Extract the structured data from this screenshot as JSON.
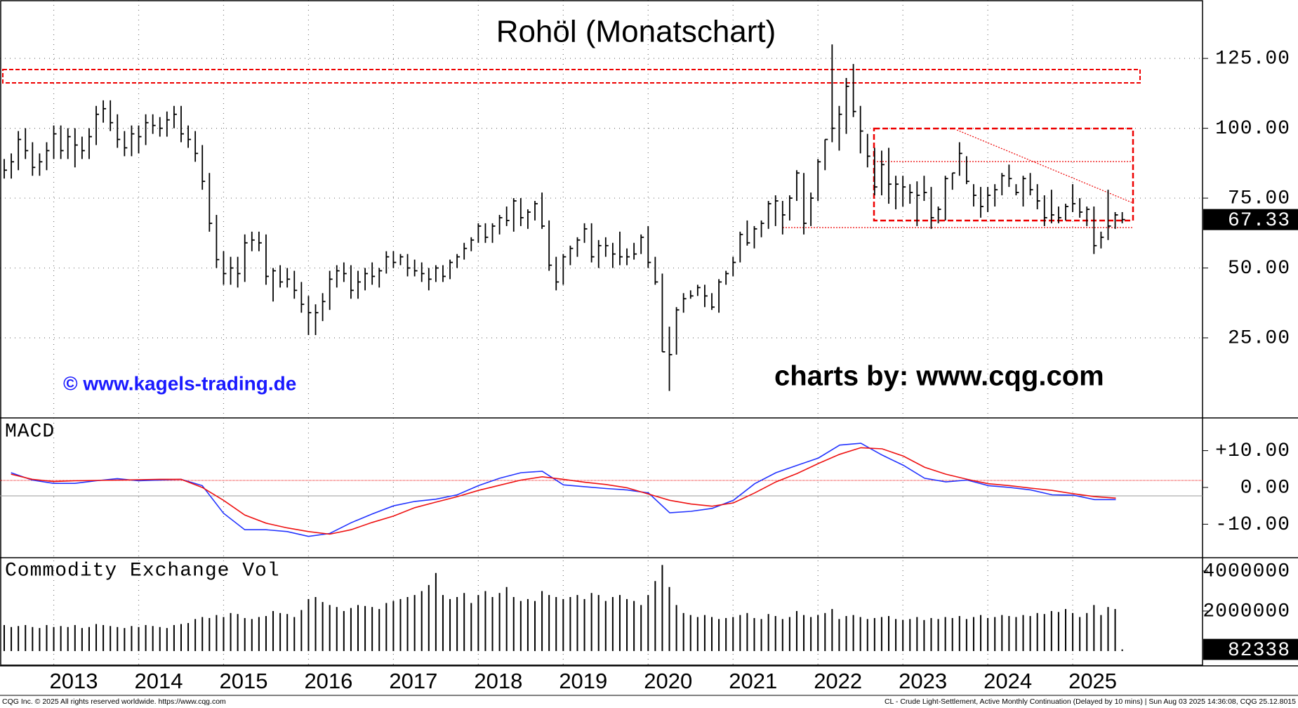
{
  "chart_data": [
    {
      "type": "ohlc",
      "title": "Rohöl (Monatschart)",
      "watermark": "© www.kagels-trading.de",
      "credit": "charts by: www.cqg.com",
      "color": "#000000",
      "categories": [
        null,
        null,
        null,
        null,
        null,
        null,
        null,
        "2013",
        null,
        null,
        null,
        null,
        null,
        null,
        null,
        null,
        null,
        null,
        null,
        "2014",
        null,
        null,
        null,
        null,
        null,
        null,
        null,
        null,
        null,
        null,
        null,
        "2015",
        null,
        null,
        null,
        null,
        null,
        null,
        null,
        null,
        null,
        null,
        null,
        "2016",
        null,
        null,
        null,
        null,
        null,
        null,
        null,
        null,
        null,
        null,
        null,
        "2017",
        null,
        null,
        null,
        null,
        null,
        null,
        null,
        null,
        null,
        null,
        null,
        "2018",
        null,
        null,
        null,
        null,
        null,
        null,
        null,
        null,
        null,
        null,
        null,
        "2019",
        null,
        null,
        null,
        null,
        null,
        null,
        null,
        null,
        null,
        null,
        null,
        "2020",
        null,
        null,
        null,
        null,
        null,
        null,
        null,
        null,
        null,
        null,
        null,
        "2021",
        null,
        null,
        null,
        null,
        null,
        null,
        null,
        null,
        null,
        null,
        null,
        "2022",
        null,
        null,
        null,
        null,
        null,
        null,
        null,
        null,
        null,
        null,
        null,
        "2023",
        null,
        null,
        null,
        null,
        null,
        null,
        null,
        null,
        null,
        null,
        null,
        "2024",
        null,
        null,
        null,
        null,
        null,
        null,
        null,
        null,
        null,
        null,
        null,
        "2025",
        null,
        null,
        null,
        null,
        null,
        null,
        null
      ],
      "high": [
        89,
        91,
        99,
        100,
        95,
        91,
        95,
        101,
        101,
        100,
        100,
        97,
        100,
        108,
        110,
        110,
        105,
        99,
        101,
        101,
        105,
        105,
        104,
        106,
        108,
        108,
        101,
        99,
        94,
        84,
        69,
        56,
        54,
        54,
        62,
        63,
        63,
        62,
        50,
        51,
        50,
        49,
        45,
        40,
        37,
        41,
        49,
        51,
        52,
        51,
        49,
        50,
        52,
        50,
        56,
        56,
        55,
        55,
        53,
        52,
        50,
        51,
        51,
        53,
        55,
        59,
        61,
        66,
        66,
        66,
        69,
        72,
        75,
        75,
        71,
        74,
        77,
        67,
        54,
        55,
        58,
        61,
        66,
        66,
        60,
        61,
        59,
        63,
        57,
        59,
        62,
        65,
        54,
        48,
        29,
        36,
        41,
        42,
        44,
        44,
        41,
        46,
        49,
        54,
        63,
        67,
        65,
        67,
        74,
        76,
        74,
        76,
        85,
        84,
        77,
        89,
        96,
        130,
        108,
        118,
        123,
        108,
        98,
        93,
        92,
        93,
        83,
        83,
        80,
        81,
        83,
        79,
        72,
        83,
        84,
        95,
        90,
        80,
        79,
        79,
        80,
        84,
        87,
        80,
        83,
        84,
        80,
        76,
        78,
        72,
        73,
        80,
        75,
        72,
        72,
        63,
        78,
        70,
        70
      ],
      "low": [
        82,
        82,
        85,
        89,
        83,
        83,
        85,
        89,
        89,
        89,
        86,
        89,
        89,
        94,
        102,
        99,
        93,
        90,
        90,
        91,
        94,
        98,
        97,
        97,
        100,
        95,
        93,
        88,
        78,
        63,
        50,
        44,
        44,
        43,
        45,
        56,
        56,
        44,
        38,
        43,
        43,
        39,
        34,
        26,
        26,
        31,
        35,
        43,
        45,
        39,
        39,
        42,
        44,
        43,
        48,
        50,
        51,
        47,
        47,
        45,
        42,
        45,
        45,
        46,
        50,
        53,
        56,
        59,
        59,
        59,
        62,
        65,
        63,
        65,
        64,
        67,
        64,
        49,
        42,
        44,
        51,
        54,
        59,
        52,
        50,
        54,
        50,
        51,
        51,
        53,
        55,
        50,
        44,
        20,
        6,
        19,
        34,
        39,
        40,
        36,
        35,
        34,
        44,
        47,
        52,
        58,
        57,
        61,
        64,
        65,
        62,
        67,
        74,
        62,
        65,
        74,
        85,
        95,
        92,
        98,
        104,
        91,
        86,
        76,
        76,
        73,
        71,
        72,
        73,
        65,
        74,
        64,
        66,
        67,
        78,
        83,
        80,
        72,
        68,
        70,
        72,
        76,
        79,
        76,
        72,
        76,
        71,
        65,
        66,
        66,
        67,
        70,
        68,
        65,
        55,
        57,
        60,
        64,
        66
      ],
      "close": [
        85,
        88,
        96,
        92,
        86,
        88,
        92,
        98,
        92,
        97,
        94,
        92,
        97,
        105,
        107,
        102,
        96,
        93,
        98,
        97,
        102,
        101,
        100,
        103,
        105,
        98,
        96,
        91,
        81,
        66,
        53,
        48,
        50,
        48,
        59,
        60,
        59,
        47,
        49,
        45,
        46,
        42,
        37,
        34,
        34,
        38,
        46,
        49,
        48,
        42,
        45,
        48,
        47,
        49,
        54,
        52,
        54,
        50,
        49,
        48,
        46,
        50,
        47,
        52,
        54,
        57,
        60,
        65,
        61,
        65,
        68,
        67,
        74,
        68,
        70,
        73,
        65,
        51,
        45,
        54,
        57,
        60,
        64,
        54,
        58,
        58,
        55,
        54,
        54,
        55,
        61,
        52,
        45,
        20,
        19,
        35,
        39,
        40,
        43,
        40,
        36,
        45,
        48,
        52,
        62,
        59,
        64,
        66,
        73,
        74,
        69,
        75,
        84,
        66,
        75,
        88,
        96,
        100,
        105,
        115,
        106,
        99,
        90,
        79,
        87,
        80,
        80,
        79,
        77,
        76,
        77,
        68,
        71,
        82,
        84,
        91,
        81,
        76,
        72,
        76,
        78,
        83,
        82,
        77,
        82,
        78,
        74,
        68,
        69,
        68,
        72,
        73,
        70,
        71,
        58,
        61,
        65,
        69,
        67.33
      ],
      "ylim": [
        -3.4,
        145.9
      ],
      "yticks": [
        {
          "value": 25,
          "label": "25.00"
        },
        {
          "value": 50,
          "label": "50.00"
        },
        {
          "value": 75,
          "label": "75.00"
        },
        {
          "value": 100,
          "label": "100.00"
        },
        {
          "value": 125,
          "label": "125.00"
        }
      ],
      "grid": true
    },
    {
      "type": "line",
      "title": "MACD",
      "x": [
        2012.5,
        2012.75,
        2013,
        2013.25,
        2013.5,
        2013.75,
        2014,
        2014.25,
        2014.5,
        2014.75,
        2015,
        2015.25,
        2015.5,
        2015.75,
        2016,
        2016.25,
        2016.5,
        2016.75,
        2017,
        2017.25,
        2017.5,
        2017.75,
        2018,
        2018.25,
        2018.5,
        2018.75,
        2019,
        2019.25,
        2019.5,
        2019.75,
        2020,
        2020.25,
        2020.5,
        2020.75,
        2021,
        2021.25,
        2021.5,
        2021.75,
        2022,
        2022.25,
        2022.5,
        2022.75,
        2023,
        2023.25,
        2023.5,
        2023.75,
        2024,
        2024.25,
        2024.5,
        2024.75,
        2025,
        2025.25,
        2025.5
      ],
      "xlim": [
        2012.37,
        2026.52
      ],
      "series": [
        {
          "color": "#2233ff",
          "values": [
            4.0,
            2.0,
            1.1,
            1.1,
            1.8,
            2.4,
            1.8,
            2.0,
            2.2,
            0.5,
            -7,
            -11.5,
            -11.5,
            -12.0,
            -13.3,
            -12.5,
            -9.6,
            -7.2,
            -5.0,
            -3.8,
            -3.2,
            -2.0,
            0.5,
            2.5,
            4.0,
            4.4,
            0.7,
            0.2,
            -0.3,
            -0.7,
            -1.5,
            -6.9,
            -6.5,
            -5.7,
            -3.5,
            1.0,
            4.0,
            6.0,
            8.0,
            11.5,
            12.0,
            8.8,
            6.0,
            2.5,
            1.5,
            2.0,
            0.5,
            0.0,
            -0.7,
            -2.0,
            -2.1,
            -3.3,
            -3.3
          ]
        },
        {
          "color": "#ee1111",
          "values": [
            3.6,
            2.2,
            1.6,
            1.8,
            1.9,
            2.0,
            2.1,
            2.2,
            2.2,
            0.0,
            -3.5,
            -7.5,
            -9.7,
            -11.0,
            -12.0,
            -12.7,
            -11.5,
            -9.5,
            -7.8,
            -5.5,
            -4.0,
            -2.5,
            -0.8,
            0.6,
            2.0,
            2.9,
            2.2,
            1.4,
            0.8,
            -0.1,
            -1.8,
            -3.5,
            -4.5,
            -5.1,
            -4.2,
            -1.5,
            1.5,
            3.8,
            6.5,
            9.0,
            10.8,
            10.5,
            8.5,
            5.5,
            3.6,
            2.2,
            1.0,
            0.5,
            -0.2,
            -0.8,
            -1.7,
            -2.5,
            -2.9
          ]
        }
      ],
      "ylim": [
        -18.9,
        18.7
      ],
      "yticks": [
        {
          "value": 10,
          "label": "+10.00"
        },
        {
          "value": 0,
          "label": "0.00"
        },
        {
          "value": -10,
          "label": "-10.00"
        }
      ]
    },
    {
      "type": "bar",
      "title": "Commodity Exchange Vol",
      "color": "#000000",
      "values": [
        1300000,
        1200000,
        1250000,
        1300000,
        1200000,
        1150000,
        1300000,
        1200000,
        1250000,
        1200000,
        1300000,
        1150000,
        1200000,
        1350000,
        1300000,
        1250000,
        1200000,
        1150000,
        1250000,
        1200000,
        1300000,
        1250000,
        1200000,
        1150000,
        1300000,
        1350000,
        1400000,
        1600000,
        1700000,
        1650000,
        1800000,
        1700000,
        1900000,
        1850000,
        1650000,
        1600000,
        1700000,
        1750000,
        2000000,
        1900000,
        1850000,
        1700000,
        2050000,
        2600000,
        2700000,
        2450000,
        2300000,
        2200000,
        2000000,
        2150000,
        2300000,
        2250000,
        2200000,
        2100000,
        2400000,
        2500000,
        2600000,
        2700000,
        2800000,
        3000000,
        3300000,
        3900000,
        2800000,
        2600000,
        2700000,
        2900000,
        2400000,
        2800000,
        3000000,
        2700000,
        2900000,
        3200000,
        2700000,
        2500000,
        2600000,
        2500000,
        3000000,
        2800000,
        2700000,
        2600000,
        2700000,
        2800000,
        2600000,
        2900000,
        2800000,
        2500000,
        2700000,
        2800000,
        2600000,
        2500000,
        2300000,
        2800000,
        3500000,
        4300000,
        3200000,
        2300000,
        1900000,
        1800000,
        1700000,
        1800000,
        1700000,
        1600000,
        1650000,
        1700000,
        1800000,
        1900000,
        1650000,
        1600000,
        1850000,
        1750000,
        1600000,
        1700000,
        2000000,
        1800000,
        1700000,
        1800000,
        1900000,
        2100000,
        1600000,
        1750000,
        1800000,
        1700000,
        1600000,
        1650000,
        1700000,
        1750000,
        1600000,
        1550000,
        1600000,
        1700000,
        1550000,
        1650000,
        1600000,
        1700000,
        1650000,
        1750000,
        1600000,
        1700000,
        1800000,
        1650000,
        1700000,
        1800000,
        1750000,
        1700000,
        1800000,
        1750000,
        1900000,
        1850000,
        2000000,
        1950000,
        2100000,
        1900000,
        1700000,
        1900000,
        2300000,
        1800000,
        2200000,
        2100000,
        82338
      ],
      "ylim": [
        -740000,
        4630000
      ],
      "yticks": [
        2000000,
        4000000
      ]
    }
  ],
  "footer": {
    "left": "CQG Inc. © 2025 All rights reserved worldwide. https://www.cqg.com",
    "right": "CL - Crude Light-Settlement, Active Monthly Continuation (Delayed by 10 mins) | Sun Aug 03 2025 14:36:08, CQG 25.12.8015"
  }
}
